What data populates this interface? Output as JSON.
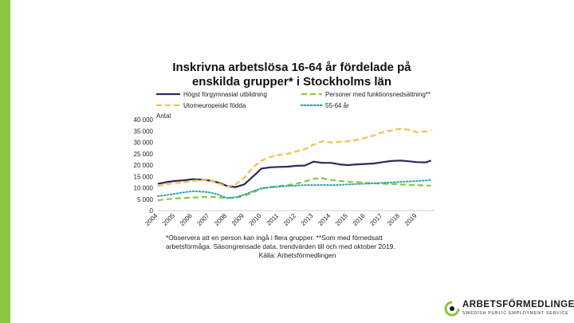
{
  "chart_data": {
    "type": "line",
    "title": "Inskrivna arbetslösa 16-64 år fördelade på enskilda grupper* i Stockholms län",
    "ylabel": "Antal",
    "xlabel": "",
    "ylim": [
      0,
      40000
    ],
    "yticks": [
      "0",
      "5 000",
      "10 000",
      "15 000",
      "20 000",
      "25 000",
      "30 000",
      "35 000",
      "40 000"
    ],
    "ytick_values": [
      0,
      5000,
      10000,
      15000,
      20000,
      25000,
      30000,
      35000,
      40000
    ],
    "xlim": [
      2004,
      2020
    ],
    "x_tick_labels": [
      "2004",
      "2005",
      "2006",
      "2007",
      "2008",
      "2009",
      "2010",
      "2011",
      "2012",
      "2013",
      "2014",
      "2015",
      "2016",
      "2017",
      "2018",
      "2019"
    ],
    "x": [
      2004,
      2004.5,
      2005,
      2005.5,
      2006,
      2006.5,
      2007,
      2007.5,
      2008,
      2008.5,
      2009,
      2009.5,
      2010,
      2010.5,
      2011,
      2011.5,
      2012,
      2012.5,
      2013,
      2013.5,
      2014,
      2014.5,
      2015,
      2015.5,
      2016,
      2016.5,
      2017,
      2017.5,
      2018,
      2018.5,
      2019,
      2019.5,
      2019.8
    ],
    "series": [
      {
        "name": "Högst förgymnasial utbildning",
        "color": "#2b2a5c",
        "style": "solid",
        "values": [
          11800,
          12500,
          13000,
          13300,
          13800,
          13600,
          13200,
          12300,
          10800,
          10300,
          11500,
          15000,
          18500,
          19000,
          19200,
          19300,
          19700,
          19800,
          21500,
          21000,
          21000,
          20300,
          20000,
          20300,
          20500,
          20700,
          21300,
          21800,
          22000,
          21700,
          21300,
          21200,
          22000
        ]
      },
      {
        "name": "Personer med funktionsnedsättning**",
        "color": "#8cc63f",
        "style": "dashed",
        "values": [
          4500,
          5000,
          5300,
          5500,
          5700,
          5900,
          6100,
          5800,
          5500,
          5600,
          6500,
          8000,
          9700,
          10300,
          10800,
          11200,
          11800,
          12800,
          14000,
          14200,
          13500,
          13000,
          12700,
          12500,
          12200,
          12000,
          11800,
          11700,
          11500,
          11300,
          11200,
          11000,
          11000
        ]
      },
      {
        "name": "Utomeuropeiskt födda",
        "color": "#f0c04c",
        "style": "dashed",
        "values": [
          10800,
          11500,
          12000,
          12500,
          13000,
          13500,
          13200,
          12000,
          10500,
          11500,
          14500,
          19000,
          22000,
          23500,
          24500,
          25000,
          26000,
          27000,
          29000,
          30500,
          30000,
          30200,
          30500,
          31000,
          32000,
          33000,
          34500,
          35200,
          36000,
          35500,
          34500,
          34800,
          35500
        ]
      },
      {
        "name": "55-64 år",
        "color": "#2ba3b0",
        "style": "dotted",
        "values": [
          6300,
          6800,
          7400,
          8000,
          8500,
          8300,
          8000,
          7000,
          5500,
          5800,
          7000,
          8500,
          9800,
          10200,
          10500,
          10800,
          11000,
          11200,
          11200,
          11300,
          11200,
          11300,
          11500,
          11700,
          11800,
          12000,
          12200,
          12400,
          12600,
          12800,
          13000,
          13200,
          13500
        ]
      }
    ]
  },
  "footnote": {
    "line1": "*Observera att en person kan ingå i flera grupper. **Som med förnedsatt arbetsförmåga. Säsongrensade data, trendvärden till och med oktober 2019.",
    "source": "Källa: Arbetsförmedlingen"
  },
  "logo": {
    "name": "ARBETSFÖRMEDLINGEN",
    "subtitle": "SWEDISH PUBLIC EMPLOYMENT SERVICE",
    "color": "#8cc63f"
  },
  "colors": {
    "side_bar": "#8cc63f"
  }
}
